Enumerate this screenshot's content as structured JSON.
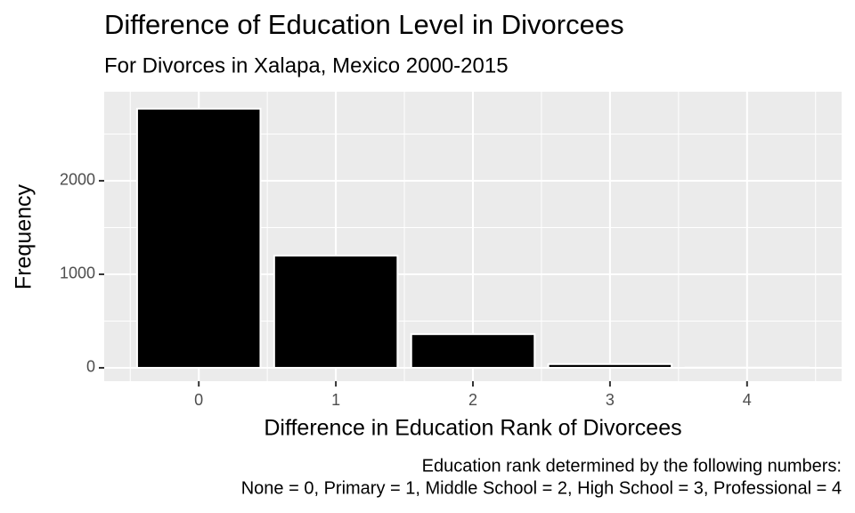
{
  "chart_data": {
    "type": "bar",
    "title": "Difference of Education Level in Divorcees",
    "subtitle": "For Divorces in Xalapa, Mexico 2000-2015",
    "x_label": "Difference in Education Rank of Divorcees",
    "y_label": "Frequency",
    "caption": [
      "Education rank determined by the following numbers:",
      "None = 0, Primary = 1, Middle School = 2, High School = 3, Professional = 4"
    ],
    "x": [
      0,
      1,
      2,
      3,
      4
    ],
    "values": [
      2770,
      1200,
      360,
      40,
      2
    ],
    "color": "#000000",
    "bar_width": 0.9,
    "xlim": [
      -0.69,
      4.69
    ],
    "xticks": [
      0,
      1,
      2,
      3,
      4
    ],
    "x_minor_ticks": [
      -0.5,
      0.5,
      1.5,
      2.5,
      3.5,
      4.5
    ],
    "ylim": [
      -143,
      2952
    ],
    "yticks": [
      0,
      1000,
      2000
    ],
    "y_minor_ticks": [
      500,
      1500,
      2500
    ],
    "grid": true
  }
}
